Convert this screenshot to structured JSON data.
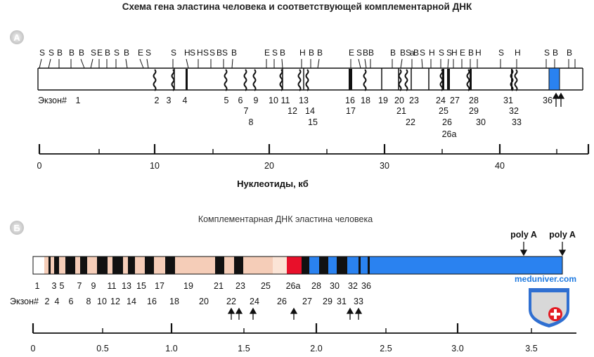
{
  "title": "Схема гена эластина человека и соответствующей комплементарной ДНК",
  "panel_a": {
    "badge": "А",
    "sites": [
      "S",
      "S",
      "B",
      "B",
      "B",
      "S",
      "E",
      "B",
      "S",
      "B",
      "E",
      "S",
      "S",
      "H",
      "S",
      "H",
      "S",
      "S",
      "B",
      "S",
      "B",
      "E",
      "S",
      "B",
      "H",
      "B",
      "B",
      "E",
      "S",
      "B",
      "B",
      "B",
      "B",
      "S",
      "a",
      "B",
      "S",
      "H",
      "S",
      "S",
      "H",
      "E",
      "B",
      "H",
      "S",
      "H",
      "S",
      "B",
      "B"
    ],
    "exon_prefix": "Экзон#",
    "exon_labels": [
      "1",
      "2",
      "3",
      "4",
      "5",
      "6",
      "7",
      "8",
      "9",
      "10",
      "11",
      "12",
      "13",
      "14",
      "15",
      "16",
      "17",
      "18",
      "19",
      "20",
      "21",
      "22",
      "23",
      "24",
      "25",
      "26",
      "26a",
      "27",
      "28",
      "29",
      "30",
      "31",
      "32",
      "33",
      "36"
    ],
    "axis_ticks": [
      "0",
      "10",
      "20",
      "30",
      "40"
    ],
    "axis_label": "Нуклеотиды, кб"
  },
  "panel_b": {
    "badge": "Б",
    "title": "Комплементарная ДНК эластина человека",
    "poly_a": [
      "poly A",
      "poly A"
    ],
    "exons_top": [
      "1",
      "3",
      "5",
      "7",
      "9",
      "11",
      "13",
      "15",
      "17",
      "19",
      "21",
      "23",
      "25",
      "26a",
      "28",
      "30",
      "32",
      "36"
    ],
    "exon_prefix": "Экзон#",
    "exons_bottom": [
      "2",
      "4",
      "6",
      "8",
      "10",
      "12",
      "14",
      "16",
      "18",
      "20",
      "22",
      "24",
      "26",
      "27",
      "29",
      "31",
      "33"
    ],
    "axis_ticks": [
      "0",
      "0.5",
      "1.0",
      "1.5",
      "2.0",
      "2.5",
      "3.0",
      "3.5"
    ]
  },
  "watermark": "meduniver.com",
  "colors": {
    "exon_dark": "#111111",
    "exon_light": "#f5cdb8",
    "exon_red": "#e8102a",
    "exon_blue": "#2a82f0",
    "accent_blue": "#1f7ae0"
  }
}
